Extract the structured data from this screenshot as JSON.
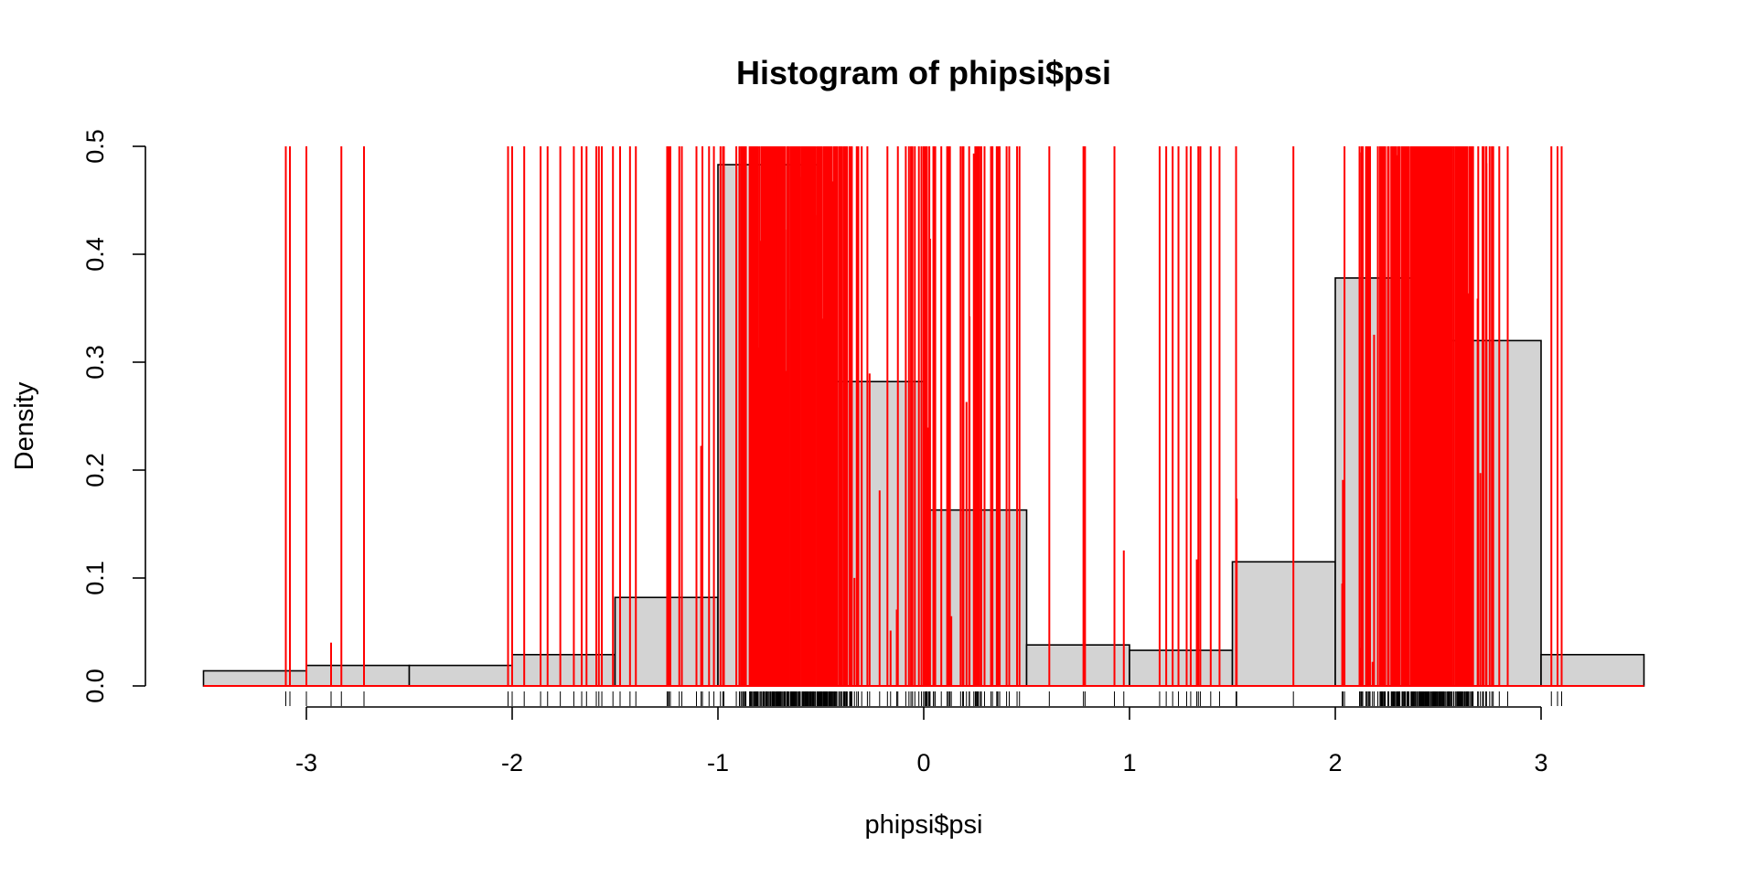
{
  "chart_data": {
    "type": "bar",
    "title": "Histogram of phipsi$psi",
    "xlabel": "phipsi$psi",
    "ylabel": "Density",
    "xlim": [
      -3.5,
      3.5
    ],
    "ylim": [
      0,
      0.5
    ],
    "x_ticks": [
      -3,
      -2,
      -1,
      0,
      1,
      2,
      3
    ],
    "x_tick_labels": [
      "-3",
      "-2",
      "-1",
      "0",
      "1",
      "2",
      "3"
    ],
    "y_ticks": [
      0,
      0.1,
      0.2,
      0.3,
      0.4,
      0.5
    ],
    "y_tick_labels": [
      "0.0",
      "0.1",
      "0.2",
      "0.3",
      "0.4",
      "0.5"
    ],
    "bins": [
      {
        "from": -3.5,
        "to": -3.0,
        "density": 0.014
      },
      {
        "from": -3.0,
        "to": -2.5,
        "density": 0.019
      },
      {
        "from": -2.5,
        "to": -2.0,
        "density": 0.019
      },
      {
        "from": -2.0,
        "to": -1.5,
        "density": 0.029
      },
      {
        "from": -1.5,
        "to": -1.0,
        "density": 0.082
      },
      {
        "from": -1.0,
        "to": -0.5,
        "density": 0.483
      },
      {
        "from": -0.5,
        "to": 0.0,
        "density": 0.282
      },
      {
        "from": 0.0,
        "to": 0.5,
        "density": 0.163
      },
      {
        "from": 0.5,
        "to": 1.0,
        "density": 0.038
      },
      {
        "from": 1.0,
        "to": 1.5,
        "density": 0.033
      },
      {
        "from": 1.5,
        "to": 2.0,
        "density": 0.115
      },
      {
        "from": 2.0,
        "to": 2.5,
        "density": 0.378
      },
      {
        "from": 2.5,
        "to": 3.0,
        "density": 0.32
      },
      {
        "from": 3.0,
        "to": 3.5,
        "density": 0.029
      }
    ],
    "grid": false,
    "colors": {
      "bar_fill": "#d3d3d3",
      "bar_stroke": "#000000",
      "spikes": "#ff0000",
      "rug": "#000000"
    }
  }
}
